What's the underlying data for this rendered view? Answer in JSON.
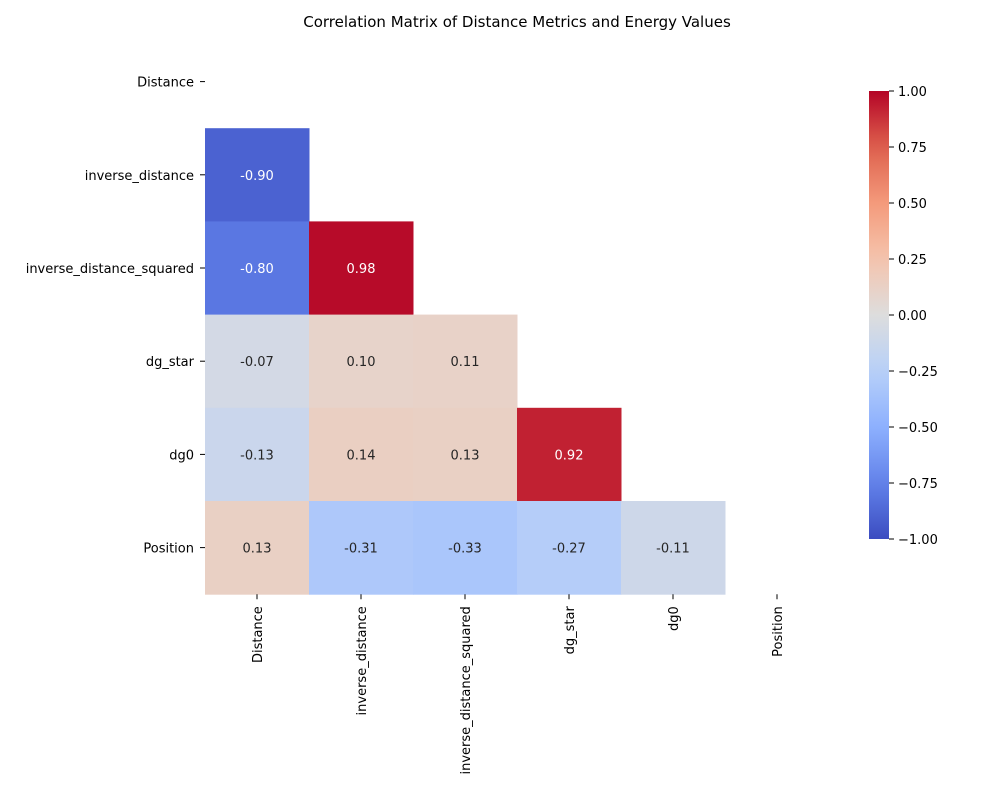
{
  "chart_data": {
    "type": "heatmap",
    "title": "Correlation Matrix of Distance Metrics and Energy Values",
    "variables": [
      "Distance",
      "inverse_distance",
      "inverse_distance_squared",
      "dg_star",
      "dg0",
      "Position"
    ],
    "matrix": [
      [
        null,
        null,
        null,
        null,
        null,
        null
      ],
      [
        -0.9,
        null,
        null,
        null,
        null,
        null
      ],
      [
        -0.8,
        0.98,
        null,
        null,
        null,
        null
      ],
      [
        -0.07,
        0.1,
        0.11,
        null,
        null,
        null
      ],
      [
        -0.13,
        0.14,
        0.13,
        0.92,
        null,
        null
      ],
      [
        0.13,
        -0.31,
        -0.33,
        -0.27,
        -0.11,
        null
      ]
    ],
    "mask": "upper-triangle-including-diagonal",
    "annotation_format": "0.00",
    "colormap": "coolwarm",
    "vmin": -1.0,
    "vmax": 1.0,
    "colorbar_ticks": [
      "1.00",
      "0.75",
      "0.50",
      "0.25",
      "0.00",
      "−0.25",
      "−0.50",
      "−0.75",
      "−1.00"
    ],
    "colorbar_tick_values": [
      1.0,
      0.75,
      0.5,
      0.25,
      0.0,
      -0.25,
      -0.5,
      -0.75,
      -1.0
    ],
    "grid": false,
    "legend": "colorbar-right"
  }
}
